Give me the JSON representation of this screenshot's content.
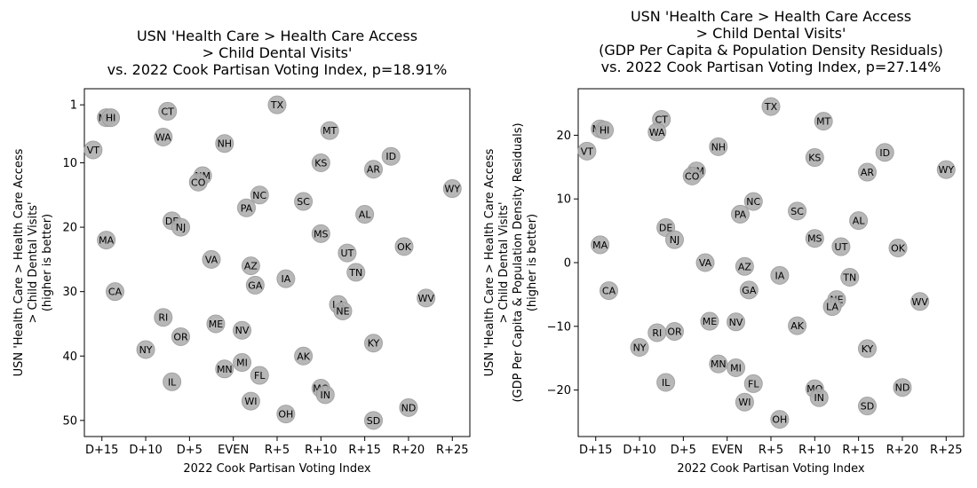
{
  "chart_data": [
    {
      "type": "scatter",
      "title": [
        "USN 'Health Care > Health Care Access",
        "> Child Dental Visits'",
        "vs. 2022 Cook Partisan Voting Index, p=18.91%"
      ],
      "xlabel": "2022 Cook Partisan Voting Index",
      "ylabel": [
        "USN 'Health Care > Health Care Access",
        "> Child Dental Visits'",
        "(higher is better)"
      ],
      "xlim": [
        -17,
        27
      ],
      "ylim": [
        52.5,
        -1.5
      ],
      "y_inverted": true,
      "xticks": [
        {
          "v": -15,
          "label": "D+15"
        },
        {
          "v": -10,
          "label": "D+10"
        },
        {
          "v": -5,
          "label": "D+5"
        },
        {
          "v": 0,
          "label": "EVEN"
        },
        {
          "v": 5,
          "label": "R+5"
        },
        {
          "v": 10,
          "label": "R+10"
        },
        {
          "v": 15,
          "label": "R+15"
        },
        {
          "v": 20,
          "label": "R+20"
        },
        {
          "v": 25,
          "label": "R+25"
        }
      ],
      "yticks": [
        {
          "v": 1,
          "label": "1"
        },
        {
          "v": 10,
          "label": "10"
        },
        {
          "v": 20,
          "label": "20"
        },
        {
          "v": 30,
          "label": "30"
        },
        {
          "v": 40,
          "label": "40"
        },
        {
          "v": 50,
          "label": "50"
        }
      ],
      "points": [
        {
          "label": "TX",
          "x": 5,
          "y": 1
        },
        {
          "label": "CT",
          "x": -7.5,
          "y": 2
        },
        {
          "label": "MD",
          "x": -14.5,
          "y": 3
        },
        {
          "label": "HI",
          "x": -14,
          "y": 3
        },
        {
          "label": "MT",
          "x": 11,
          "y": 5
        },
        {
          "label": "WA",
          "x": -8,
          "y": 6
        },
        {
          "label": "NH",
          "x": -1,
          "y": 7
        },
        {
          "label": "VT",
          "x": -16,
          "y": 8
        },
        {
          "label": "ID",
          "x": 18,
          "y": 9
        },
        {
          "label": "KS",
          "x": 10,
          "y": 10
        },
        {
          "label": "AR",
          "x": 16,
          "y": 11
        },
        {
          "label": "NM",
          "x": -3.5,
          "y": 12
        },
        {
          "label": "CO",
          "x": -4,
          "y": 13
        },
        {
          "label": "WY",
          "x": 25,
          "y": 14
        },
        {
          "label": "NC",
          "x": 3,
          "y": 15
        },
        {
          "label": "SC",
          "x": 8,
          "y": 16
        },
        {
          "label": "PA",
          "x": 1.5,
          "y": 17
        },
        {
          "label": "AL",
          "x": 15,
          "y": 18
        },
        {
          "label": "DE",
          "x": -7,
          "y": 19
        },
        {
          "label": "NJ",
          "x": -6,
          "y": 20
        },
        {
          "label": "MS",
          "x": 10,
          "y": 21
        },
        {
          "label": "MA",
          "x": -14.5,
          "y": 22
        },
        {
          "label": "OK",
          "x": 19.5,
          "y": 23
        },
        {
          "label": "UT",
          "x": 13,
          "y": 24
        },
        {
          "label": "VA",
          "x": -2.5,
          "y": 25
        },
        {
          "label": "AZ",
          "x": 2,
          "y": 26
        },
        {
          "label": "TN",
          "x": 14,
          "y": 27
        },
        {
          "label": "IA",
          "x": 6,
          "y": 28
        },
        {
          "label": "GA",
          "x": 2.5,
          "y": 29
        },
        {
          "label": "CA",
          "x": -13.5,
          "y": 30
        },
        {
          "label": "WV",
          "x": 22,
          "y": 31
        },
        {
          "label": "LA",
          "x": 12,
          "y": 32
        },
        {
          "label": "NE",
          "x": 12.5,
          "y": 33
        },
        {
          "label": "RI",
          "x": -8,
          "y": 34
        },
        {
          "label": "ME",
          "x": -2,
          "y": 35
        },
        {
          "label": "NV",
          "x": 1,
          "y": 36
        },
        {
          "label": "OR",
          "x": -6,
          "y": 37
        },
        {
          "label": "KY",
          "x": 16,
          "y": 38
        },
        {
          "label": "NY",
          "x": -10,
          "y": 39
        },
        {
          "label": "AK",
          "x": 8,
          "y": 40
        },
        {
          "label": "MI",
          "x": 1,
          "y": 41
        },
        {
          "label": "MN",
          "x": -1,
          "y": 42
        },
        {
          "label": "FL",
          "x": 3,
          "y": 43
        },
        {
          "label": "IL",
          "x": -7,
          "y": 44
        },
        {
          "label": "MO",
          "x": 10,
          "y": 45
        },
        {
          "label": "IN",
          "x": 10.5,
          "y": 46
        },
        {
          "label": "WI",
          "x": 2,
          "y": 47
        },
        {
          "label": "ND",
          "x": 20,
          "y": 48
        },
        {
          "label": "OH",
          "x": 6,
          "y": 49
        },
        {
          "label": "SD",
          "x": 16,
          "y": 50
        }
      ]
    },
    {
      "type": "scatter",
      "title": [
        "USN 'Health Care > Health Care Access",
        "> Child Dental Visits'",
        "(GDP Per Capita & Population Density Residuals)",
        "vs. 2022 Cook Partisan Voting Index, p=27.14%"
      ],
      "xlabel": "2022 Cook Partisan Voting Index",
      "ylabel": [
        "USN 'Health Care > Health Care Access",
        "> Child Dental Visits'",
        "(GDP Per Capita & Population Density Residuals)",
        "(higher is better)"
      ],
      "xlim": [
        -17,
        27
      ],
      "ylim": [
        -27.3,
        27.3
      ],
      "y_inverted": false,
      "xticks": [
        {
          "v": -15,
          "label": "D+15"
        },
        {
          "v": -10,
          "label": "D+10"
        },
        {
          "v": -5,
          "label": "D+5"
        },
        {
          "v": 0,
          "label": "EVEN"
        },
        {
          "v": 5,
          "label": "R+5"
        },
        {
          "v": 10,
          "label": "R+10"
        },
        {
          "v": 15,
          "label": "R+15"
        },
        {
          "v": 20,
          "label": "R+20"
        },
        {
          "v": 25,
          "label": "R+25"
        }
      ],
      "yticks": [
        {
          "v": 20,
          "label": "20"
        },
        {
          "v": 10,
          "label": "10"
        },
        {
          "v": 0,
          "label": "0"
        },
        {
          "v": -10,
          "label": "−10"
        },
        {
          "v": -20,
          "label": "−20"
        }
      ],
      "points": [
        {
          "label": "TX",
          "x": 5,
          "y": 24.5
        },
        {
          "label": "CT",
          "x": -7.5,
          "y": 22.5
        },
        {
          "label": "MT",
          "x": 11,
          "y": 22.2
        },
        {
          "label": "MD",
          "x": -14.5,
          "y": 21
        },
        {
          "label": "HI",
          "x": -14,
          "y": 20.8
        },
        {
          "label": "WA",
          "x": -8,
          "y": 20.5
        },
        {
          "label": "NH",
          "x": -1,
          "y": 18.2
        },
        {
          "label": "VT",
          "x": -16,
          "y": 17.5
        },
        {
          "label": "ID",
          "x": 18,
          "y": 17.3
        },
        {
          "label": "KS",
          "x": 10,
          "y": 16.5
        },
        {
          "label": "WY",
          "x": 25,
          "y": 14.6
        },
        {
          "label": "NM",
          "x": -3.5,
          "y": 14.4
        },
        {
          "label": "AR",
          "x": 16,
          "y": 14.2
        },
        {
          "label": "CO",
          "x": -4,
          "y": 13.6
        },
        {
          "label": "NC",
          "x": 3,
          "y": 9.6
        },
        {
          "label": "SC",
          "x": 8,
          "y": 8.1
        },
        {
          "label": "PA",
          "x": 1.5,
          "y": 7.6
        },
        {
          "label": "AL",
          "x": 15,
          "y": 6.6
        },
        {
          "label": "DE",
          "x": -7,
          "y": 5.5
        },
        {
          "label": "MS",
          "x": 10,
          "y": 3.8
        },
        {
          "label": "NJ",
          "x": -6,
          "y": 3.6
        },
        {
          "label": "MA",
          "x": -14.5,
          "y": 2.8
        },
        {
          "label": "UT",
          "x": 13,
          "y": 2.5
        },
        {
          "label": "OK",
          "x": 19.5,
          "y": 2.3
        },
        {
          "label": "VA",
          "x": -2.5,
          "y": 0
        },
        {
          "label": "AZ",
          "x": 2,
          "y": -0.6
        },
        {
          "label": "IA",
          "x": 6,
          "y": -2
        },
        {
          "label": "TN",
          "x": 14,
          "y": -2.3
        },
        {
          "label": "GA",
          "x": 2.5,
          "y": -4.3
        },
        {
          "label": "CA",
          "x": -13.5,
          "y": -4.4
        },
        {
          "label": "NE",
          "x": 12.5,
          "y": -5.8
        },
        {
          "label": "WV",
          "x": 22,
          "y": -6.1
        },
        {
          "label": "LA",
          "x": 12,
          "y": -6.9
        },
        {
          "label": "ME",
          "x": -2,
          "y": -9.2
        },
        {
          "label": "NV",
          "x": 1,
          "y": -9.3
        },
        {
          "label": "AK",
          "x": 8,
          "y": -9.9
        },
        {
          "label": "OR",
          "x": -6,
          "y": -10.8
        },
        {
          "label": "RI",
          "x": -8,
          "y": -11
        },
        {
          "label": "NY",
          "x": -10,
          "y": -13.3
        },
        {
          "label": "KY",
          "x": 16,
          "y": -13.5
        },
        {
          "label": "MN",
          "x": -1,
          "y": -15.9
        },
        {
          "label": "MI",
          "x": 1,
          "y": -16.5
        },
        {
          "label": "IL",
          "x": -7,
          "y": -18.8
        },
        {
          "label": "FL",
          "x": 3,
          "y": -19
        },
        {
          "label": "ND",
          "x": 20,
          "y": -19.6
        },
        {
          "label": "MO",
          "x": 10,
          "y": -19.8
        },
        {
          "label": "IN",
          "x": 10.5,
          "y": -21.2
        },
        {
          "label": "WI",
          "x": 2,
          "y": -21.9
        },
        {
          "label": "SD",
          "x": 16,
          "y": -22.5
        },
        {
          "label": "OH",
          "x": 6,
          "y": -24.6
        }
      ]
    }
  ]
}
